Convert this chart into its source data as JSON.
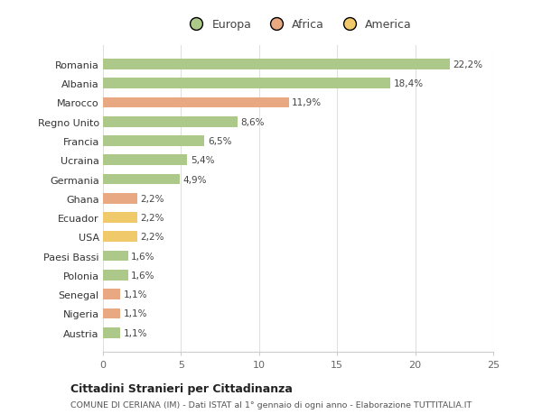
{
  "countries": [
    "Romania",
    "Albania",
    "Marocco",
    "Regno Unito",
    "Francia",
    "Ucraina",
    "Germania",
    "Ghana",
    "Ecuador",
    "USA",
    "Paesi Bassi",
    "Polonia",
    "Senegal",
    "Nigeria",
    "Austria"
  ],
  "values": [
    22.2,
    18.4,
    11.9,
    8.6,
    6.5,
    5.4,
    4.9,
    2.2,
    2.2,
    2.2,
    1.6,
    1.6,
    1.1,
    1.1,
    1.1
  ],
  "labels": [
    "22,2%",
    "18,4%",
    "11,9%",
    "8,6%",
    "6,5%",
    "5,4%",
    "4,9%",
    "2,2%",
    "2,2%",
    "2,2%",
    "1,6%",
    "1,6%",
    "1,1%",
    "1,1%",
    "1,1%"
  ],
  "categories": [
    "Europa",
    "Europa",
    "Africa",
    "Europa",
    "Europa",
    "Europa",
    "Europa",
    "Africa",
    "America",
    "America",
    "Europa",
    "Europa",
    "Africa",
    "Africa",
    "Europa"
  ],
  "colors": {
    "Europa": "#adc98a",
    "Africa": "#e8a882",
    "America": "#f0c96a"
  },
  "legend_order": [
    "Europa",
    "Africa",
    "America"
  ],
  "legend_colors": [
    "#adc98a",
    "#e8a882",
    "#f0c96a"
  ],
  "xlim": [
    0,
    25
  ],
  "xticks": [
    0,
    5,
    10,
    15,
    20,
    25
  ],
  "background_color": "#ffffff",
  "grid_color": "#e0e0e0",
  "title": "Cittadini Stranieri per Cittadinanza",
  "subtitle": "COMUNE DI CERIANA (IM) - Dati ISTAT al 1° gennaio di ogni anno - Elaborazione TUTTITALIA.IT"
}
